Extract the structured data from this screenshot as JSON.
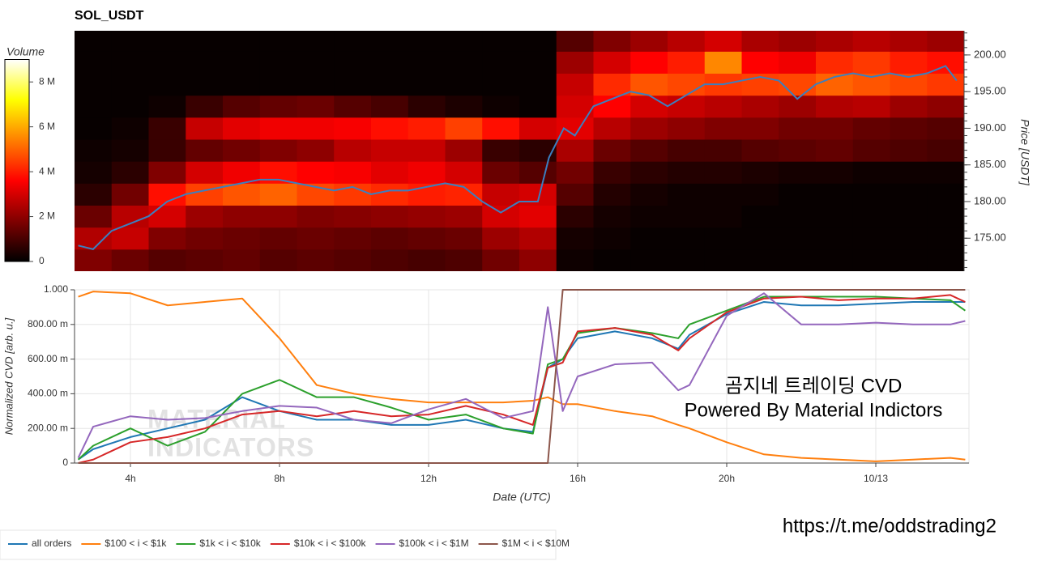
{
  "chart_data": [
    {
      "type": "heatmap",
      "title": "SOL_USDT",
      "colorbar": {
        "label": "Volume",
        "lim": [
          0,
          9
        ],
        "ticks": [
          0,
          {
            "value": 2,
            "label": "2 M"
          },
          {
            "value": 4,
            "label": "4 M"
          },
          {
            "value": 6,
            "label": "6 M"
          },
          {
            "value": 8,
            "label": "8 M"
          }
        ]
      },
      "xlim": [
        2.5,
        26.5
      ],
      "ylim": [
        170.5,
        203.3
      ],
      "ylabel": "Price [USDT]",
      "yticks": [
        {
          "value": 175,
          "label": "175.00"
        },
        {
          "value": 180,
          "label": "180.00"
        },
        {
          "value": 185,
          "label": "185.00"
        },
        {
          "value": 190,
          "label": "190.00"
        },
        {
          "value": 195,
          "label": "195.00"
        },
        {
          "value": 200,
          "label": "200.00"
        }
      ],
      "x_bins": [
        2.5,
        3.5,
        4.5,
        5.5,
        6.5,
        7.5,
        8.5,
        9.5,
        10.5,
        11.5,
        12.5,
        13.5,
        14.5,
        15.5,
        16.5,
        17.5,
        18.5,
        19.5,
        20.5,
        21.5,
        22.5,
        23.5,
        24.5,
        25.5,
        26.5
      ],
      "y_bins": [
        170.5,
        173.5,
        176.5,
        179.5,
        182.5,
        185.5,
        188.5,
        191.5,
        194.5,
        197.5,
        200.5,
        203.5
      ],
      "z": [
        [
          1.8,
          1.5,
          1.2,
          1.3,
          1.4,
          1.2,
          1.3,
          1.2,
          1.1,
          1.0,
          1.1,
          1.6,
          2.0,
          0.2,
          0.1,
          0.1,
          0.1,
          0.1,
          0.1,
          0.1,
          0.1,
          0.1,
          0.1,
          0.1
        ],
        [
          2.5,
          2.8,
          1.8,
          1.6,
          1.5,
          1.4,
          1.5,
          1.4,
          1.3,
          1.4,
          1.5,
          2.2,
          2.5,
          0.3,
          0.2,
          0.1,
          0.1,
          0.1,
          0.1,
          0.1,
          0.1,
          0.1,
          0.1,
          0.1
        ],
        [
          1.5,
          2.6,
          3.0,
          2.2,
          2.0,
          2.0,
          1.8,
          1.9,
          2.0,
          2.1,
          2.2,
          3.0,
          3.2,
          0.6,
          0.3,
          0.2,
          0.2,
          0.2,
          0.1,
          0.1,
          0.1,
          0.1,
          0.1,
          0.1
        ],
        [
          0.6,
          1.6,
          3.8,
          4.5,
          4.8,
          5.0,
          4.6,
          4.4,
          4.2,
          4.0,
          4.1,
          2.8,
          3.0,
          1.2,
          0.5,
          0.3,
          0.2,
          0.2,
          0.2,
          0.1,
          0.1,
          0.1,
          0.1,
          0.1
        ],
        [
          0.3,
          0.6,
          1.8,
          3.0,
          3.4,
          3.8,
          3.6,
          3.5,
          3.2,
          3.4,
          3.0,
          1.5,
          1.2,
          1.6,
          0.8,
          0.6,
          0.5,
          0.5,
          0.4,
          0.3,
          0.3,
          0.2,
          0.2,
          0.2
        ],
        [
          0.2,
          0.3,
          0.8,
          1.4,
          1.6,
          1.8,
          2.0,
          2.6,
          2.8,
          2.8,
          2.2,
          0.8,
          0.6,
          2.4,
          1.5,
          1.2,
          1.0,
          1.0,
          1.2,
          1.3,
          1.4,
          1.2,
          1.1,
          1.0
        ],
        [
          0.1,
          0.2,
          0.8,
          2.8,
          3.2,
          3.4,
          3.4,
          3.5,
          3.8,
          4.0,
          4.5,
          3.8,
          3.0,
          3.2,
          2.6,
          2.2,
          2.0,
          1.8,
          1.8,
          1.6,
          1.6,
          1.4,
          1.3,
          1.2
        ],
        [
          0.1,
          0.1,
          0.2,
          0.8,
          1.2,
          1.4,
          1.5,
          1.2,
          1.0,
          0.6,
          0.4,
          0.2,
          0.1,
          3.0,
          3.6,
          3.0,
          2.8,
          2.6,
          2.4,
          2.2,
          2.5,
          2.6,
          2.2,
          2.0
        ],
        [
          0.1,
          0.1,
          0.1,
          0.1,
          0.1,
          0.1,
          0.1,
          0.1,
          0.1,
          0.1,
          0.1,
          0.1,
          0.1,
          2.8,
          4.2,
          4.8,
          4.6,
          4.4,
          4.5,
          4.6,
          5.0,
          4.8,
          4.6,
          4.4
        ],
        [
          0.1,
          0.1,
          0.1,
          0.1,
          0.1,
          0.1,
          0.1,
          0.1,
          0.1,
          0.1,
          0.1,
          0.1,
          0.1,
          2.2,
          3.0,
          3.6,
          4.0,
          5.5,
          3.6,
          3.4,
          4.2,
          4.4,
          4.0,
          3.8
        ],
        [
          0.1,
          0.1,
          0.1,
          0.1,
          0.1,
          0.1,
          0.1,
          0.1,
          0.1,
          0.1,
          0.1,
          0.1,
          0.1,
          1.2,
          1.8,
          2.2,
          2.6,
          3.0,
          2.4,
          2.2,
          2.4,
          2.6,
          2.4,
          2.2
        ]
      ],
      "line": {
        "color": "#3b7fc0",
        "x": [
          2.6,
          3,
          3.5,
          4,
          4.5,
          5,
          5.5,
          6,
          6.5,
          7,
          7.5,
          8,
          8.5,
          9,
          9.5,
          10,
          10.5,
          11,
          11.5,
          12,
          12.5,
          13,
          13.5,
          14,
          14.5,
          15,
          15.3,
          15.7,
          16,
          16.5,
          17,
          17.5,
          18,
          18.5,
          19,
          19.5,
          20,
          20.5,
          21,
          21.5,
          22,
          22.5,
          23,
          23.5,
          24,
          24.5,
          25,
          25.5,
          26,
          26.3
        ],
        "values": [
          174,
          173.5,
          176,
          177,
          178,
          180,
          181,
          181.5,
          182,
          182.5,
          183,
          183,
          182.5,
          182,
          181.5,
          182,
          181,
          181.5,
          181.5,
          182,
          182.5,
          182,
          180,
          178.5,
          180,
          180,
          186,
          190,
          189,
          193,
          194,
          195,
          194.5,
          193,
          194.5,
          196,
          196,
          196.5,
          197,
          196.5,
          194,
          196,
          197,
          197.5,
          197,
          197.5,
          197,
          197.5,
          198.5,
          196.5
        ]
      }
    },
    {
      "type": "line",
      "xlim": [
        2.5,
        26.5
      ],
      "ylim": [
        0,
        1
      ],
      "xlabel": "Date (UTC)",
      "ylabel": "Normalized CVD [arb. u.]",
      "grid": true,
      "legend": "bottom-left",
      "xticks": [
        {
          "value": 4,
          "label": "4h"
        },
        {
          "value": 8,
          "label": "8h"
        },
        {
          "value": 12,
          "label": "12h"
        },
        {
          "value": 16,
          "label": "16h"
        },
        {
          "value": 20,
          "label": "20h"
        },
        {
          "value": 24,
          "label": "10/13"
        }
      ],
      "yticks": [
        0,
        {
          "value": 0.2,
          "label": "200.00 m"
        },
        {
          "value": 0.4,
          "label": "400.00 m"
        },
        {
          "value": 0.6,
          "label": "600.00 m"
        },
        {
          "value": 0.8,
          "label": "800.00 m"
        },
        {
          "value": 1,
          "label": "1.000"
        }
      ],
      "x": [
        2.6,
        3,
        4,
        5,
        6,
        7,
        8,
        9,
        10,
        11,
        12,
        13,
        14,
        14.8,
        15.2,
        15.6,
        16,
        17,
        18,
        18.7,
        19,
        20,
        21,
        22,
        23,
        24,
        25,
        26,
        26.4
      ],
      "series": [
        {
          "name": "all orders",
          "color": "#1f77b4",
          "values": [
            0.02,
            0.08,
            0.15,
            0.2,
            0.25,
            0.38,
            0.3,
            0.25,
            0.25,
            0.22,
            0.22,
            0.25,
            0.2,
            0.18,
            0.55,
            0.6,
            0.72,
            0.76,
            0.72,
            0.66,
            0.74,
            0.86,
            0.93,
            0.91,
            0.91,
            0.92,
            0.93,
            0.93,
            0.93
          ]
        },
        {
          "name": "$100 < i < $1k",
          "color": "#ff7f0e",
          "values": [
            0.96,
            0.99,
            0.98,
            0.91,
            0.93,
            0.95,
            0.72,
            0.45,
            0.4,
            0.37,
            0.35,
            0.35,
            0.35,
            0.36,
            0.38,
            0.34,
            0.34,
            0.3,
            0.27,
            0.22,
            0.2,
            0.12,
            0.05,
            0.03,
            0.02,
            0.01,
            0.02,
            0.03,
            0.02
          ]
        },
        {
          "name": "$1k < i < $10k",
          "color": "#2ca02c",
          "values": [
            0.02,
            0.1,
            0.2,
            0.1,
            0.18,
            0.4,
            0.48,
            0.38,
            0.38,
            0.32,
            0.25,
            0.28,
            0.2,
            0.17,
            0.57,
            0.6,
            0.75,
            0.78,
            0.75,
            0.72,
            0.8,
            0.88,
            0.96,
            0.96,
            0.96,
            0.96,
            0.95,
            0.94,
            0.88
          ]
        },
        {
          "name": "$10k < i < $100k",
          "color": "#d62728",
          "values": [
            0.0,
            0.02,
            0.12,
            0.15,
            0.2,
            0.28,
            0.3,
            0.27,
            0.3,
            0.27,
            0.28,
            0.33,
            0.28,
            0.22,
            0.55,
            0.58,
            0.76,
            0.78,
            0.74,
            0.65,
            0.72,
            0.87,
            0.95,
            0.96,
            0.94,
            0.95,
            0.95,
            0.97,
            0.93
          ]
        },
        {
          "name": "$100k < i < $1M",
          "color": "#9467bd",
          "values": [
            0.03,
            0.21,
            0.27,
            0.25,
            0.26,
            0.3,
            0.33,
            0.32,
            0.25,
            0.23,
            0.31,
            0.37,
            0.26,
            0.3,
            0.9,
            0.3,
            0.5,
            0.57,
            0.58,
            0.42,
            0.45,
            0.85,
            0.98,
            0.8,
            0.8,
            0.81,
            0.8,
            0.8,
            0.82
          ]
        },
        {
          "name": "$1M < i < $10M",
          "color": "#8c564b",
          "values": [
            0,
            0,
            0,
            0,
            0,
            0,
            0,
            0,
            0,
            0,
            0,
            0,
            0,
            0,
            0,
            1,
            1,
            1,
            1,
            1,
            1,
            1,
            1,
            1,
            1,
            1,
            1,
            1,
            1
          ]
        }
      ],
      "watermark": [
        "MATERIAL",
        "INDICATORS"
      ],
      "annotations": [
        "곰지네 트레이딩 CVD",
        "Powered By Material Indictors"
      ]
    }
  ],
  "footer": "https://t.me/oddstrading2"
}
